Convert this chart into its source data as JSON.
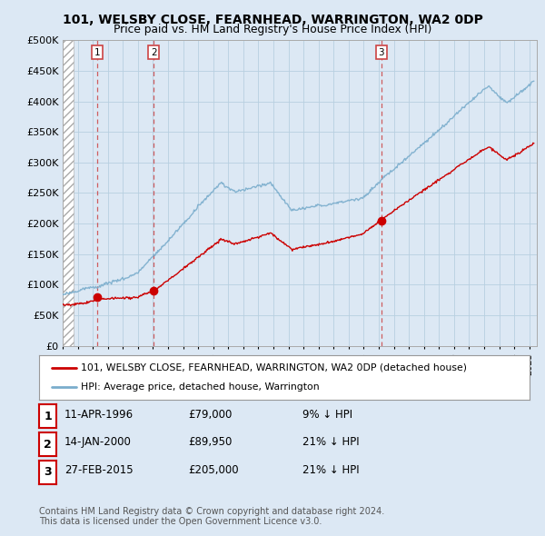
{
  "title1": "101, WELSBY CLOSE, FEARNHEAD, WARRINGTON, WA2 0DP",
  "title2": "Price paid vs. HM Land Registry's House Price Index (HPI)",
  "ylim": [
    0,
    500000
  ],
  "yticks": [
    0,
    50000,
    100000,
    150000,
    200000,
    250000,
    300000,
    350000,
    400000,
    450000,
    500000
  ],
  "ytick_labels": [
    "£0",
    "£50K",
    "£100K",
    "£150K",
    "£200K",
    "£250K",
    "£300K",
    "£350K",
    "£400K",
    "£450K",
    "£500K"
  ],
  "xlim_left": 1994.0,
  "xlim_right": 2025.5,
  "bg_color": "#dce8f4",
  "plot_bg": "#dce8f4",
  "grid_color": "#b8cfe0",
  "red_line_color": "#cc0000",
  "blue_line_color": "#7aadcc",
  "sale_marker_color": "#cc0000",
  "dashed_line_color": "#cc4444",
  "purchases": [
    {
      "date_num": 1996.28,
      "price": 79000,
      "label": "1",
      "date_str": "11-APR-1996",
      "pct": "9% ↓ HPI"
    },
    {
      "date_num": 2000.04,
      "price": 89950,
      "label": "2",
      "date_str": "14-JAN-2000",
      "pct": "21% ↓ HPI"
    },
    {
      "date_num": 2015.16,
      "price": 205000,
      "label": "3",
      "date_str": "27-FEB-2015",
      "pct": "21% ↓ HPI"
    }
  ],
  "legend1": "101, WELSBY CLOSE, FEARNHEAD, WARRINGTON, WA2 0DP (detached house)",
  "legend2": "HPI: Average price, detached house, Warrington",
  "footer1": "Contains HM Land Registry data © Crown copyright and database right 2024.",
  "footer2": "This data is licensed under the Open Government Licence v3.0."
}
